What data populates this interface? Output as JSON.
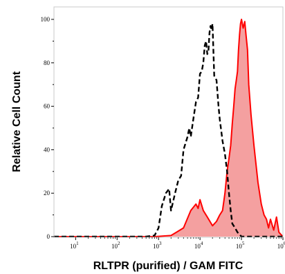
{
  "chart_data": {
    "type": "area",
    "xlabel": "RLTPR (purified) / GAM FITC",
    "ylabel": "Relative Cell Count",
    "x_scale": "log",
    "xlim": [
      3,
      1000000
    ],
    "ylim": [
      0,
      100
    ],
    "x_ticks": [
      {
        "value": 10,
        "label": "10",
        "exp": "1"
      },
      {
        "value": 100,
        "label": "10",
        "exp": "2"
      },
      {
        "value": 1000,
        "label": "10",
        "exp": "3"
      },
      {
        "value": 10000,
        "label": "10",
        "exp": "4"
      },
      {
        "value": 100000,
        "label": "10",
        "exp": "5"
      },
      {
        "value": 1000000,
        "label": "10",
        "exp": "6"
      }
    ],
    "y_ticks": [
      {
        "value": 0,
        "label": "0"
      },
      {
        "value": 20,
        "label": "20"
      },
      {
        "value": 40,
        "label": "40"
      },
      {
        "value": 60,
        "label": "60"
      },
      {
        "value": 80,
        "label": "80"
      },
      {
        "value": 100,
        "label": "100"
      }
    ],
    "grid": false,
    "series": [
      {
        "style": "filled",
        "line_color": "#ff0000",
        "fill_color": "#f4a0a0",
        "x": [
          3,
          100,
          300,
          800,
          2000,
          4000,
          6000,
          8000,
          9000,
          10000,
          12000,
          15000,
          20000,
          25000,
          30000,
          35000,
          40000,
          45000,
          50000,
          55000,
          60000,
          65000,
          70000,
          75000,
          80000,
          85000,
          90000,
          95000,
          100000,
          110000,
          120000,
          130000,
          140000,
          150000,
          170000,
          200000,
          250000,
          300000,
          350000,
          400000,
          450000,
          500000,
          600000,
          700000,
          800000,
          1000000
        ],
        "y": [
          0,
          0,
          0,
          0,
          0.5,
          4,
          12,
          15,
          13,
          17,
          12,
          9,
          5,
          7,
          10,
          12,
          20,
          30,
          36,
          42,
          52,
          60,
          68,
          72,
          76,
          86,
          93,
          98,
          100,
          96,
          99,
          92,
          86,
          70,
          56,
          42,
          25,
          15,
          10,
          8,
          4,
          8,
          3,
          9,
          2,
          0
        ]
      },
      {
        "style": "dashed",
        "line_color": "#000000",
        "x": [
          3,
          100,
          300,
          500,
          800,
          1000,
          1200,
          1500,
          1800,
          2000,
          2500,
          3000,
          3500,
          4000,
          5000,
          5500,
          6000,
          7000,
          8000,
          9000,
          10000,
          11000,
          12000,
          13000,
          14000,
          15000,
          16000,
          17000,
          18000,
          19000,
          20000,
          22000,
          25000,
          28000,
          30000,
          35000,
          40000,
          45000,
          50000,
          55000,
          60000,
          70000,
          80000,
          100000,
          1000000
        ],
        "y": [
          0,
          0,
          0,
          0,
          0.5,
          4,
          14,
          20,
          22,
          12,
          20,
          26,
          28,
          40,
          46,
          50,
          46,
          55,
          62,
          64,
          75,
          76,
          80,
          88,
          90,
          84,
          86,
          94,
          97,
          95,
          98,
          74,
          72,
          60,
          54,
          44,
          38,
          30,
          20,
          12,
          6,
          4,
          2,
          0,
          0
        ]
      }
    ]
  }
}
